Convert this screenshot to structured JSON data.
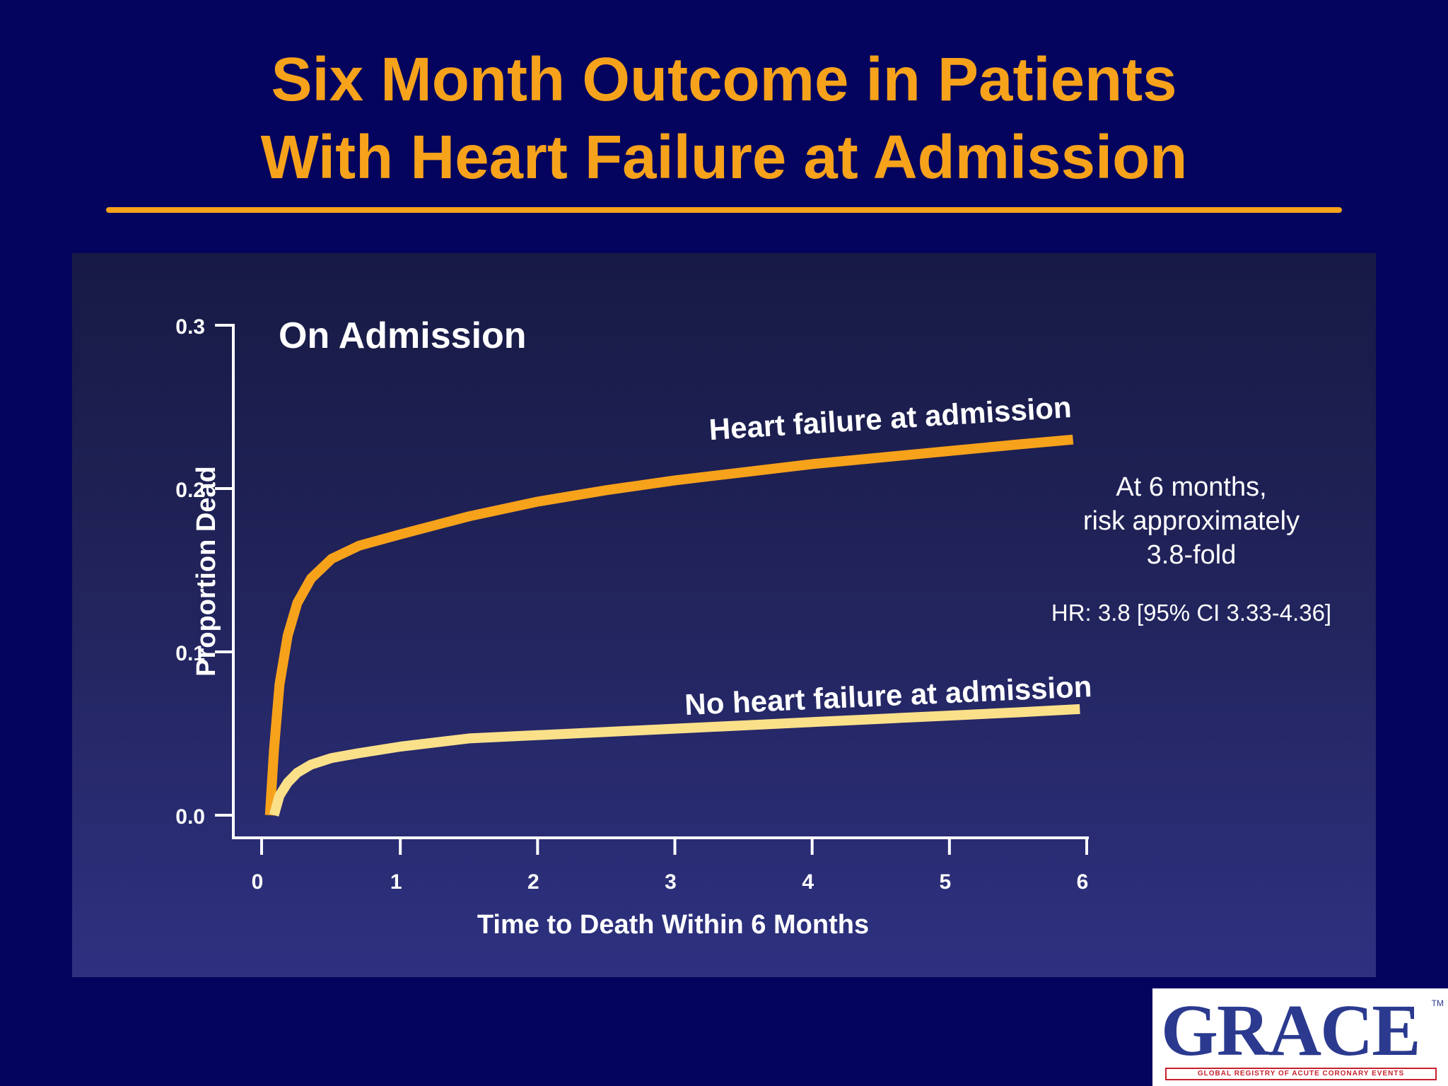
{
  "slide": {
    "title_line1": "Six Month Outcome in Patients",
    "title_line2": "With Heart Failure at Admission",
    "title_color": "#f7a21b",
    "background_color": "#04045e"
  },
  "annotation": {
    "lines": [
      "At 6 months,",
      "risk approximately",
      "3.8-fold"
    ],
    "hr": "HR: 3.8 [95% CI 3.33-4.36]"
  },
  "logo": {
    "text": "GRACE",
    "tm": "TM",
    "subtitle": "GLOBAL REGISTRY OF ACUTE CORONARY EVENTS"
  },
  "chart_data": {
    "type": "line",
    "panel_label": "On Admission",
    "xlabel": "Time  to Death Within 6 Months",
    "ylabel": "Proportion Dead",
    "xlim": [
      0,
      6
    ],
    "ylim": [
      0,
      0.3
    ],
    "x_ticks": [
      "0",
      "1",
      "2",
      "3",
      "4",
      "5",
      "6"
    ],
    "y_ticks": [
      "0.0",
      "0.1",
      "0.2",
      "0.3"
    ],
    "grid": false,
    "series": [
      {
        "name": "Heart failure at admission",
        "color": "#f7a21b",
        "x": [
          0.05,
          0.08,
          0.12,
          0.18,
          0.25,
          0.35,
          0.5,
          0.7,
          1.0,
          1.5,
          2.0,
          2.5,
          3.0,
          3.5,
          4.0,
          4.5,
          5.0,
          5.5,
          5.9
        ],
        "y": [
          0.0,
          0.04,
          0.08,
          0.11,
          0.13,
          0.145,
          0.157,
          0.165,
          0.172,
          0.183,
          0.192,
          0.199,
          0.205,
          0.21,
          0.215,
          0.219,
          0.223,
          0.227,
          0.23
        ]
      },
      {
        "name": "No heart failure at admission",
        "color": "#fbe08a",
        "x": [
          0.08,
          0.12,
          0.18,
          0.25,
          0.35,
          0.5,
          0.7,
          1.0,
          1.5,
          2.0,
          2.5,
          3.0,
          3.5,
          4.0,
          4.5,
          5.0,
          5.5,
          5.95
        ],
        "y": [
          0.0,
          0.012,
          0.02,
          0.026,
          0.031,
          0.035,
          0.038,
          0.042,
          0.047,
          0.049,
          0.051,
          0.053,
          0.055,
          0.057,
          0.059,
          0.061,
          0.063,
          0.065
        ]
      }
    ]
  }
}
